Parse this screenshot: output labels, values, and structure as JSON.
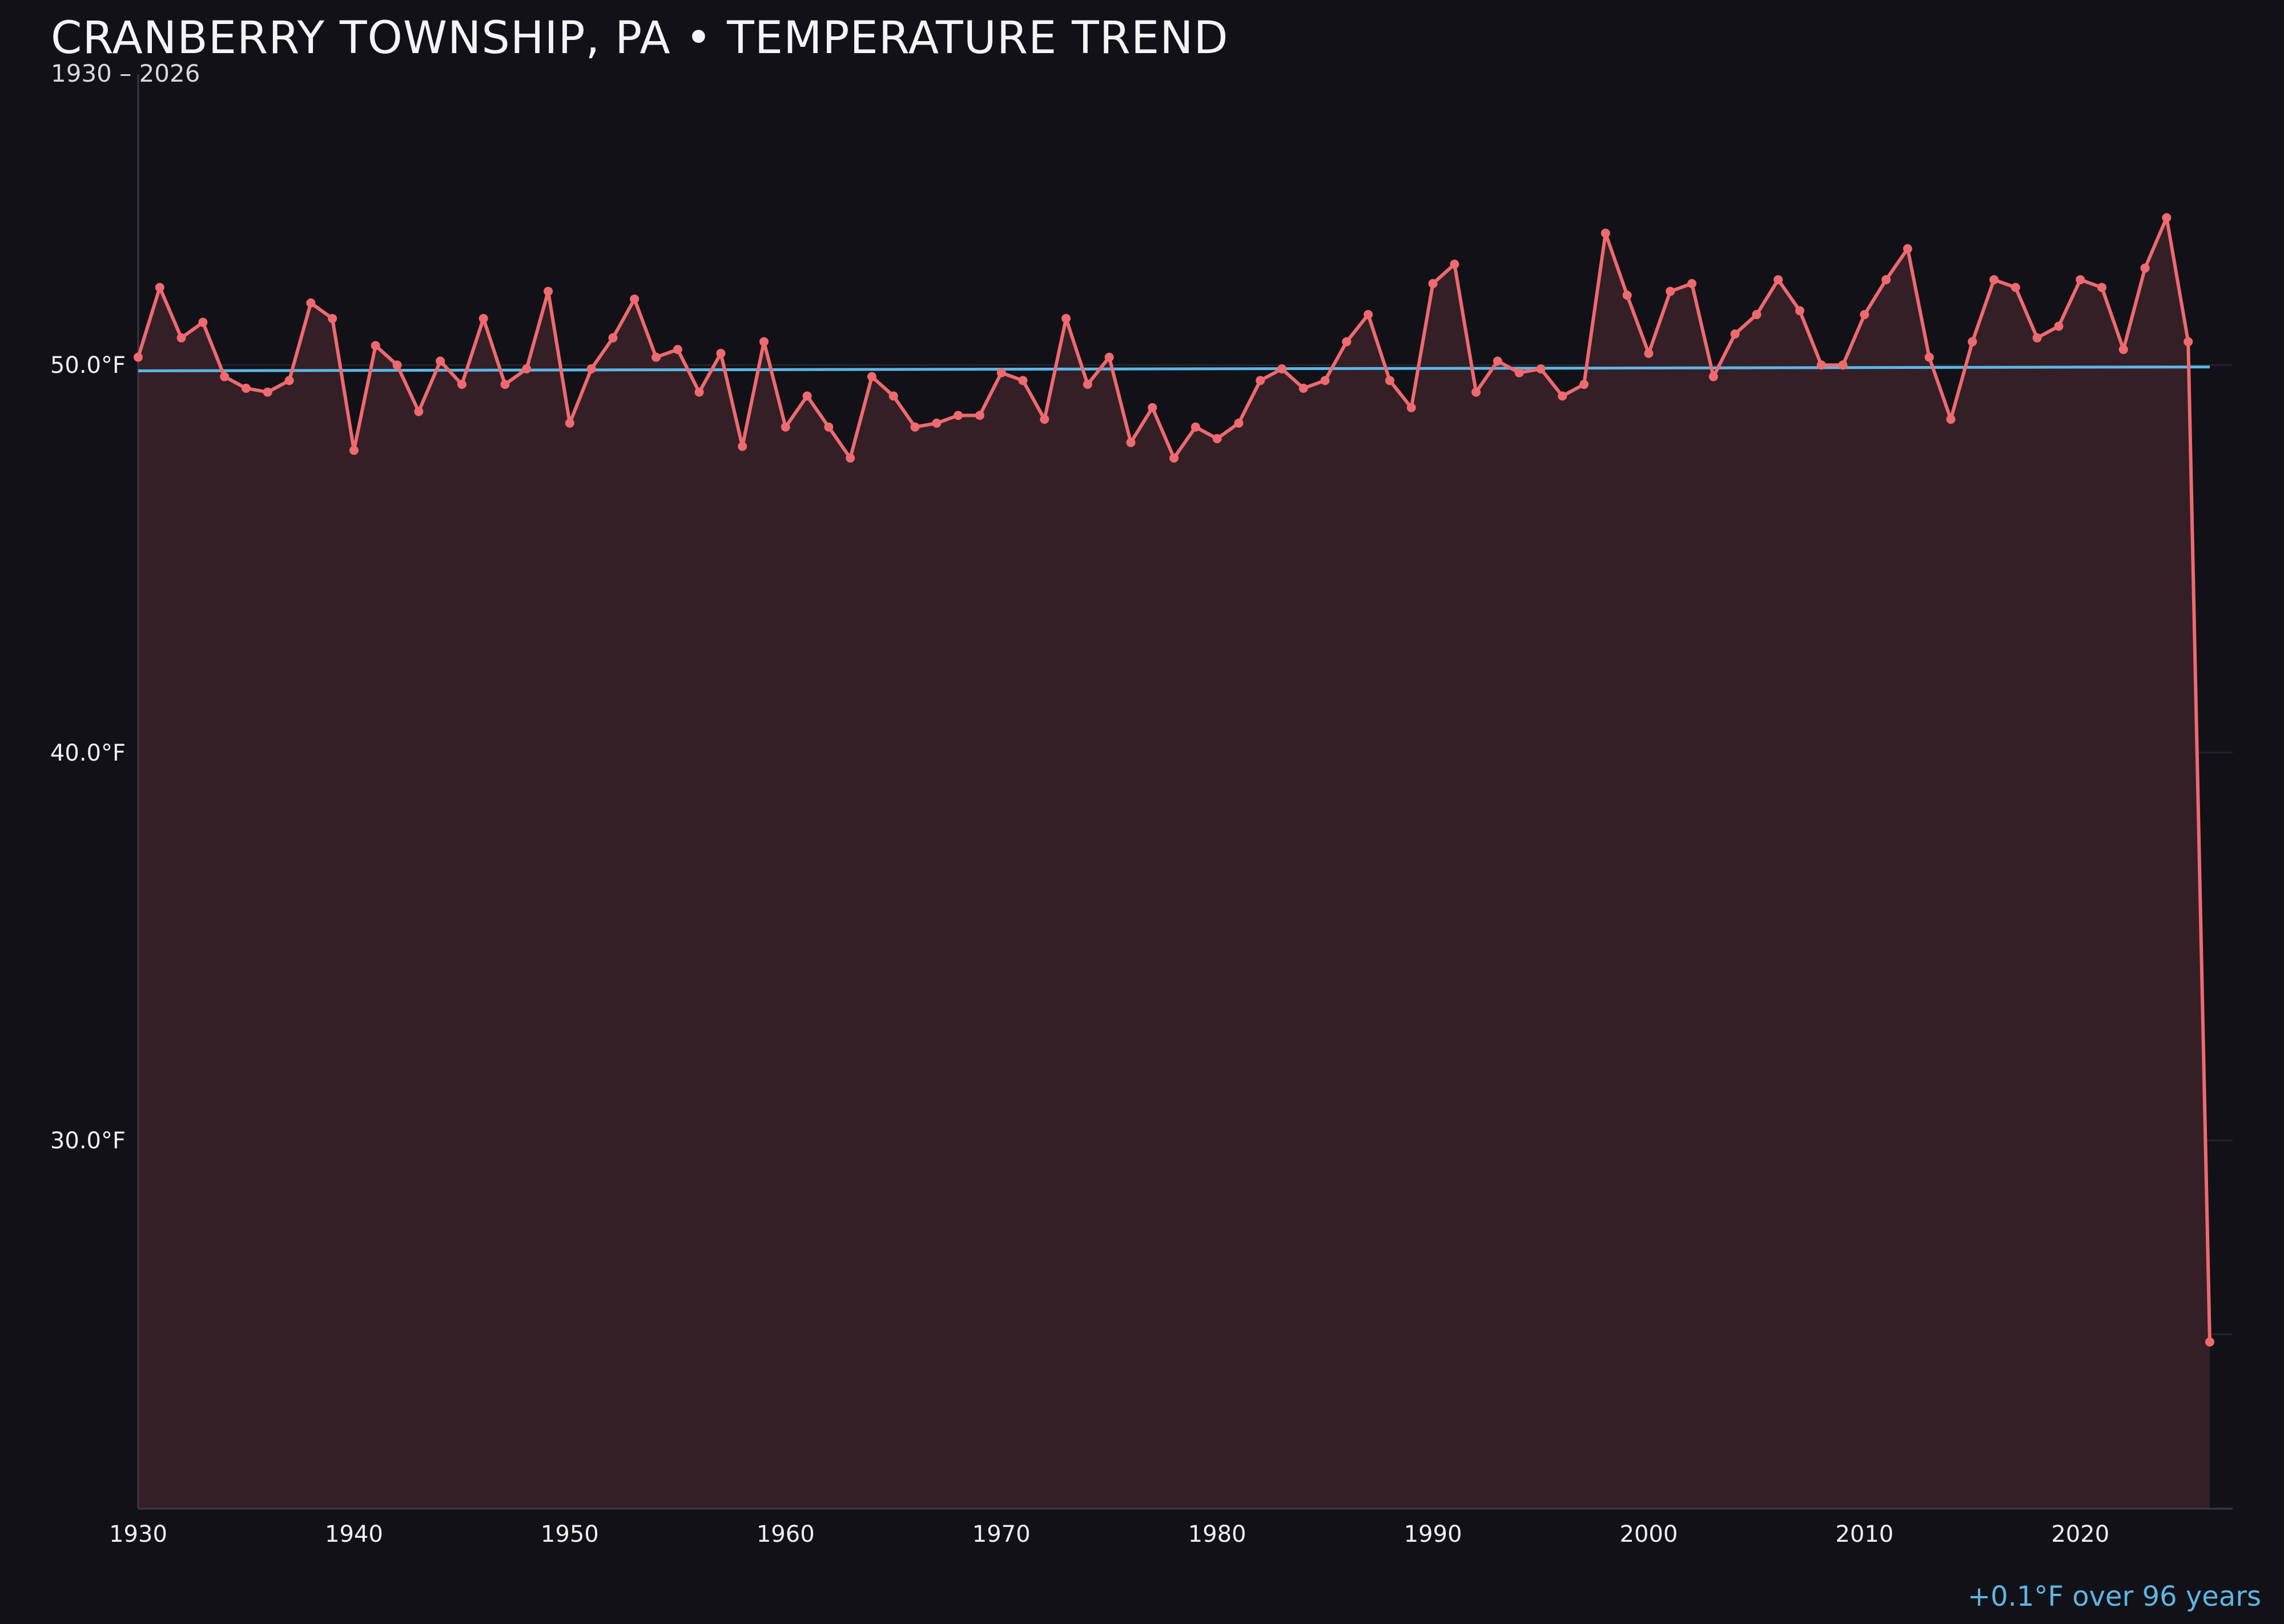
{
  "chart_data": {
    "type": "line",
    "title": "CRANBERRY TOWNSHIP, PA • TEMPERATURE TREND",
    "subtitle": "1930 – 2026",
    "xlabel": "",
    "ylabel": "",
    "xlim": [
      1930,
      2026
    ],
    "ylim": [
      20.5,
      57.5
    ],
    "x_ticks": [
      1930,
      1940,
      1950,
      1960,
      1970,
      1980,
      1990,
      2000,
      2010,
      2020
    ],
    "y_ticks": [
      30.0,
      40.0,
      50.0
    ],
    "y_tick_labels": [
      "30.0°F",
      "40.0°F",
      "50.0°F"
    ],
    "grid": true,
    "legend": "none",
    "colors": {
      "background": "#121117",
      "series": "#ee6a6f",
      "area_fill": "#341f26",
      "trend": "#5cb6e4",
      "grid": "#24222a",
      "axis": "#3a3842"
    },
    "series": [
      {
        "x": [
          1930,
          1931,
          1932,
          1933,
          1934,
          1935,
          1936,
          1937,
          1938,
          1939,
          1940,
          1941,
          1942,
          1943,
          1944,
          1945,
          1946,
          1947,
          1948,
          1949,
          1950,
          1951,
          1952,
          1953,
          1954,
          1955,
          1956,
          1957,
          1958,
          1959,
          1960,
          1961,
          1962,
          1963,
          1964,
          1965,
          1966,
          1967,
          1968,
          1969,
          1970,
          1971,
          1972,
          1973,
          1974,
          1975,
          1976,
          1977,
          1978,
          1979,
          1980,
          1981,
          1982,
          1983,
          1984,
          1985,
          1986,
          1987,
          1988,
          1989,
          1990,
          1991,
          1992,
          1993,
          1994,
          1995,
          1996,
          1997,
          1998,
          1999,
          2000,
          2001,
          2002,
          2003,
          2004,
          2005,
          2006,
          2007,
          2008,
          2009,
          2010,
          2011,
          2012,
          2013,
          2014,
          2015,
          2016,
          2017,
          2018,
          2019,
          2020,
          2021,
          2022,
          2023,
          2024,
          2025,
          2026
        ],
        "values": [
          50.2,
          52.0,
          50.7,
          51.1,
          49.7,
          49.4,
          49.3,
          49.6,
          51.6,
          51.2,
          47.8,
          50.5,
          50.0,
          48.8,
          50.1,
          49.5,
          51.2,
          49.5,
          49.9,
          51.9,
          48.5,
          49.9,
          50.7,
          51.7,
          50.2,
          50.4,
          49.3,
          50.3,
          47.9,
          50.6,
          48.4,
          49.2,
          48.4,
          47.6,
          49.7,
          49.2,
          48.4,
          48.5,
          48.7,
          48.7,
          49.8,
          49.6,
          48.6,
          51.2,
          49.5,
          50.2,
          48.0,
          48.9,
          47.6,
          48.4,
          48.1,
          48.5,
          49.6,
          49.9,
          49.4,
          49.6,
          50.6,
          51.3,
          49.6,
          48.9,
          52.1,
          52.6,
          49.3,
          50.1,
          49.8,
          49.9,
          49.2,
          49.5,
          53.4,
          51.8,
          50.3,
          51.9,
          52.1,
          49.7,
          50.8,
          51.3,
          52.2,
          51.4,
          50.0,
          50.0,
          51.3,
          52.2,
          53.0,
          50.2,
          48.6,
          50.6,
          52.2,
          52.0,
          50.7,
          51.0,
          52.2,
          52.0,
          50.4,
          52.5,
          53.8,
          50.6,
          24.8
        ]
      }
    ],
    "trend_line": {
      "x": [
        1930,
        2026
      ],
      "values": [
        49.85,
        49.95
      ],
      "label": "+0.1°F over 96 years"
    }
  }
}
